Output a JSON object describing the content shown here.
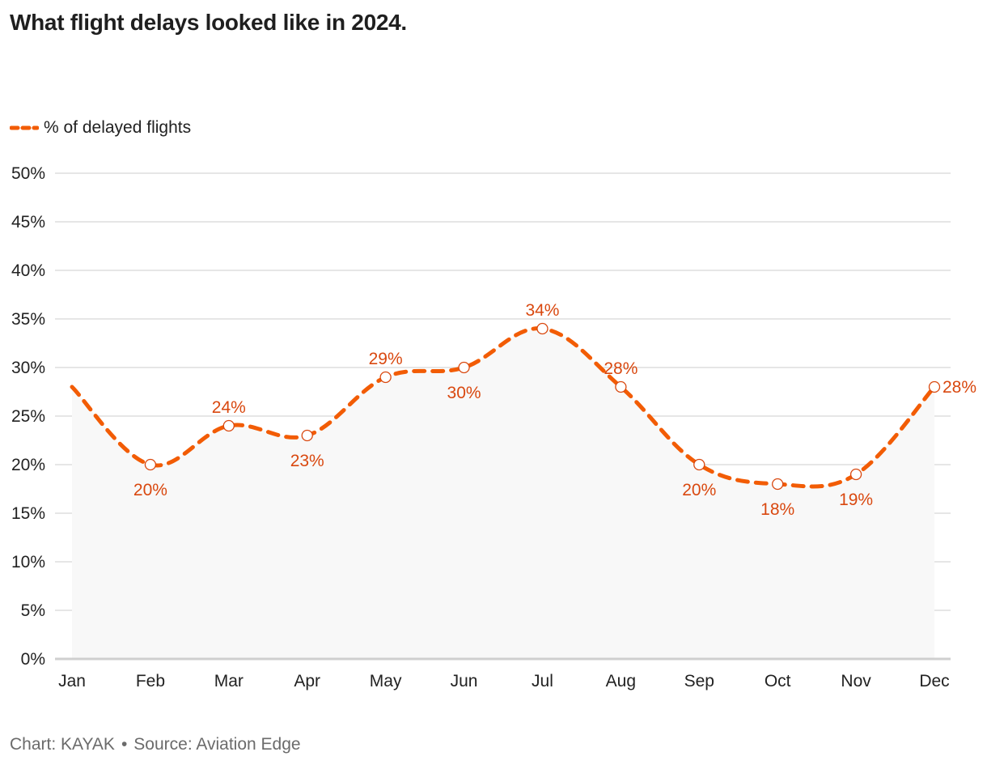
{
  "title": "What flight delays looked like in 2024.",
  "footer": {
    "chart_credit": "Chart: KAYAK",
    "separator": "•",
    "source": "Source: Aviation Edge"
  },
  "colors": {
    "accent": "#f25c05",
    "label": "#d9480f",
    "grid": "#dddddd",
    "area": "#f8f8f8",
    "axis": "#cfcfcf"
  },
  "chart_data": {
    "type": "line",
    "title": "What flight delays looked like in 2024.",
    "categories": [
      "Jan",
      "Feb",
      "Mar",
      "Apr",
      "May",
      "Jun",
      "Jul",
      "Aug",
      "Sep",
      "Oct",
      "Nov",
      "Dec"
    ],
    "series": [
      {
        "name": "% of delayed flights",
        "values": [
          28,
          20,
          24,
          23,
          29,
          30,
          34,
          28,
          20,
          18,
          19,
          28
        ],
        "labels": [
          "",
          "20%",
          "24%",
          "23%",
          "29%",
          "30%",
          "34%",
          "28%",
          "20%",
          "18%",
          "19%",
          "28%"
        ],
        "label_side": [
          "",
          "below",
          "above",
          "below",
          "above",
          "below",
          "above",
          "above",
          "below",
          "below",
          "below",
          "right"
        ]
      }
    ],
    "ylim": [
      0,
      50
    ],
    "yticks": [
      0,
      5,
      10,
      15,
      20,
      25,
      30,
      35,
      40,
      45,
      50
    ],
    "ytick_labels": [
      "0%",
      "5%",
      "10%",
      "15%",
      "20%",
      "25%",
      "30%",
      "35%",
      "40%",
      "45%",
      "50%"
    ],
    "xlabel": "",
    "ylabel": "",
    "grid": true,
    "legend_position": "top-left",
    "line_style": "dashed"
  }
}
